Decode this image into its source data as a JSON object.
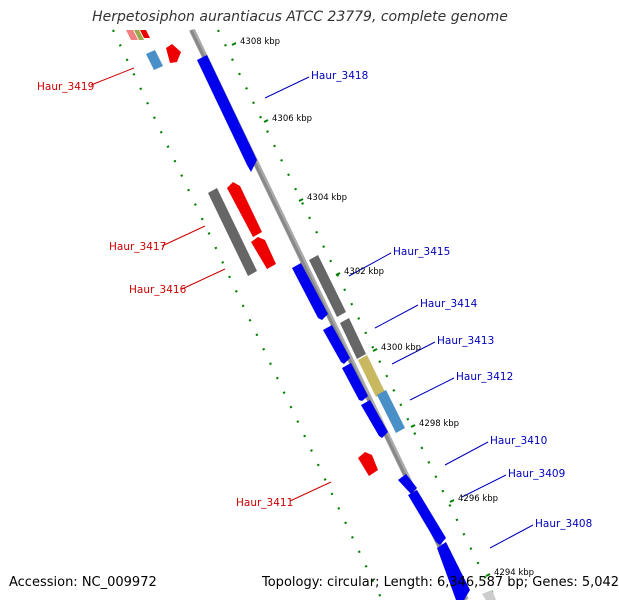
{
  "header": {
    "title": "Herpetosiphon aurantiacus ATCC 23779, complete genome"
  },
  "footer": {
    "accession": "Accession: NC_009972",
    "summary": "Topology: circular; Length: 6,346,587 bp; Genes: 5,042"
  },
  "colors": {
    "forward_gene": "#0000ee",
    "reverse_gene": "#ee0000",
    "pseudo_gene": "#666666",
    "rna_gene": "#4a90c8",
    "other_gene": "#c8b860",
    "backbone": "#888888",
    "tick": "#008000",
    "forward_label": "#0000bb",
    "reverse_label": "#cc0000"
  },
  "ticks": [
    {
      "label": "4308 kbp",
      "kbp": 4308
    },
    {
      "label": "4306 kbp",
      "kbp": 4306
    },
    {
      "label": "4304 kbp",
      "kbp": 4304
    },
    {
      "label": "4302 kbp",
      "kbp": 4302
    },
    {
      "label": "4300 kbp",
      "kbp": 4300
    },
    {
      "label": "4298 kbp",
      "kbp": 4298
    },
    {
      "label": "4296 kbp",
      "kbp": 4296
    },
    {
      "label": "4294 kbp",
      "kbp": 4294
    }
  ],
  "labels": [
    {
      "name": "Haur_3419",
      "strand": "reverse"
    },
    {
      "name": "Haur_3418",
      "strand": "forward"
    },
    {
      "name": "Haur_3417",
      "strand": "reverse"
    },
    {
      "name": "Haur_3416",
      "strand": "reverse"
    },
    {
      "name": "Haur_3415",
      "strand": "forward"
    },
    {
      "name": "Haur_3414",
      "strand": "forward"
    },
    {
      "name": "Haur_3413",
      "strand": "forward"
    },
    {
      "name": "Haur_3412",
      "strand": "forward"
    },
    {
      "name": "Haur_3411",
      "strand": "reverse"
    },
    {
      "name": "Haur_3410",
      "strand": "forward"
    },
    {
      "name": "Haur_3409",
      "strand": "forward"
    },
    {
      "name": "Haur_3408",
      "strand": "forward"
    }
  ]
}
